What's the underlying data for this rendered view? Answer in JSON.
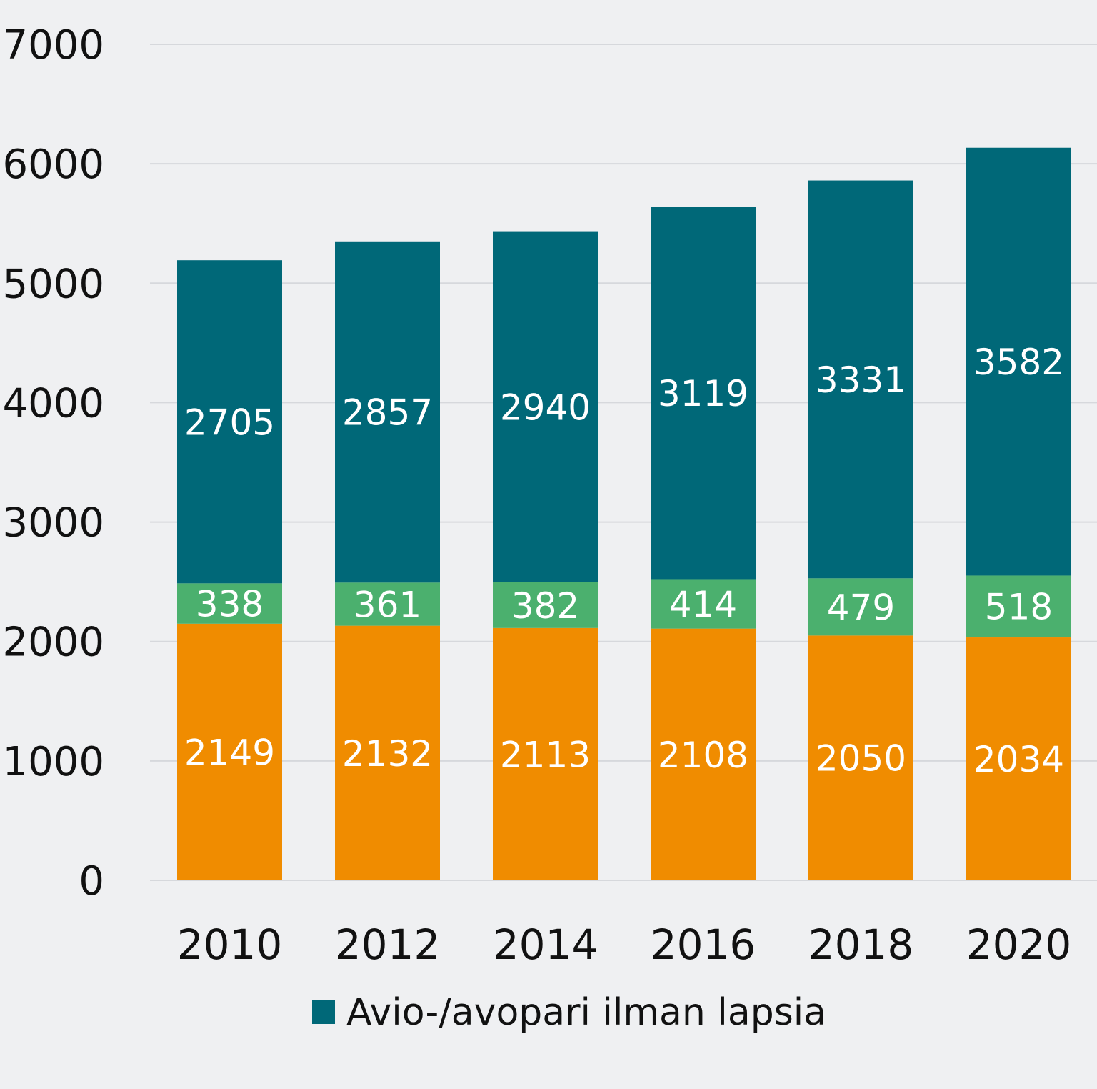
{
  "chart_data": {
    "type": "bar",
    "stacked": true,
    "categories": [
      "2010",
      "2012",
      "2014",
      "2016",
      "2018",
      "2020"
    ],
    "series": [
      {
        "color": "#f08c00",
        "values": [
          2149,
          2132,
          2113,
          2108,
          2050,
          2034
        ]
      },
      {
        "color": "#4bb06e",
        "values": [
          338,
          361,
          382,
          414,
          479,
          518
        ]
      },
      {
        "name": "Avio-/avopari ilman lapsia",
        "color": "#006878",
        "values": [
          2705,
          2857,
          2940,
          3119,
          3331,
          3582
        ]
      }
    ],
    "yticks": [
      "0",
      "1000",
      "2000",
      "3000",
      "4000",
      "5000",
      "6000",
      "7000"
    ],
    "ylim": [
      0,
      7000
    ],
    "grid": true,
    "legend": "bottom",
    "legend_entries": [
      "Avio-/avopari ilman lapsia"
    ],
    "title": "",
    "xlabel": "",
    "ylabel": ""
  }
}
